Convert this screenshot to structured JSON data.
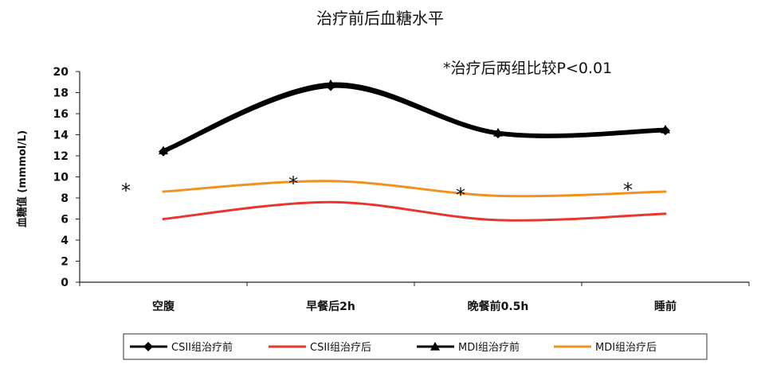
{
  "chart_data": {
    "type": "line",
    "title": "治疗前后血糖水平",
    "note": "*治疗后两组比较P<0.01",
    "xlabel": "",
    "ylabel": "血糖值 (mmmol/L)",
    "categories": [
      "空腹",
      "早餐后2h",
      "晚餐前0.5h",
      "睡前"
    ],
    "ylim": [
      0,
      20
    ],
    "yticks": [
      0,
      2,
      4,
      6,
      8,
      10,
      12,
      14,
      16,
      18,
      20
    ],
    "grid": false,
    "legend": "bottom",
    "series": [
      {
        "name": "CSII组治疗前",
        "values": [
          12.4,
          18.6,
          14.1,
          14.4
        ],
        "color": "#000000",
        "marker": "diamond"
      },
      {
        "name": "CSII组治疗后",
        "values": [
          6.0,
          7.6,
          5.9,
          6.5
        ],
        "color": "#e8362f",
        "marker": "none"
      },
      {
        "name": "MDI组治疗前",
        "values": [
          12.5,
          18.8,
          14.2,
          14.5
        ],
        "color": "#000000",
        "marker": "triangle"
      },
      {
        "name": "MDI组治疗后",
        "values": [
          8.6,
          9.6,
          8.2,
          8.6
        ],
        "color": "#f1911f",
        "marker": "none"
      }
    ],
    "annotations": [
      {
        "text": "*",
        "category": "空腹",
        "y": 8.9
      },
      {
        "text": "*",
        "category": "早餐后2h",
        "y": 9.6
      },
      {
        "text": "*",
        "category": "晚餐前0.5h",
        "y": 8.5
      },
      {
        "text": "*",
        "category": "睡前",
        "y": 9.0
      }
    ]
  }
}
